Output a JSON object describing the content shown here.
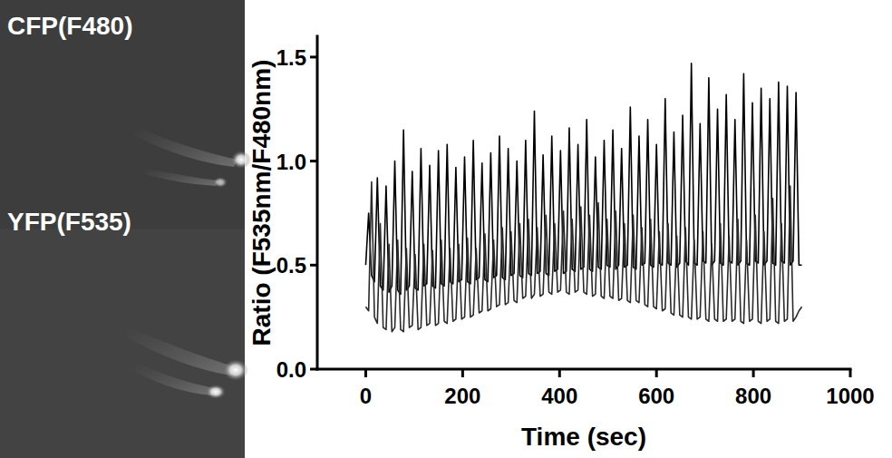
{
  "image_panel": {
    "labels": [
      "CFP(F480)",
      "YFP(F535)"
    ]
  },
  "chart_data": {
    "type": "line",
    "x_label": "Time (sec)",
    "y_label": "Ratio (F535nm/F480nm)",
    "xlim": [
      -100,
      1000
    ],
    "xticks": [
      0,
      200,
      400,
      600,
      800,
      1000
    ],
    "ylim": [
      0,
      1.6
    ],
    "yticks": [
      {
        "value": 0,
        "label": "0.0"
      },
      {
        "value": 0.5,
        "label": "0.5"
      },
      {
        "value": 1,
        "label": "1.0"
      },
      {
        "value": 1.5,
        "label": "1.5"
      }
    ],
    "x": [
      0,
      6,
      12,
      18,
      24,
      30,
      36,
      42,
      48,
      54,
      60,
      66,
      72,
      78,
      84,
      90,
      96,
      102,
      108,
      114,
      120,
      126,
      132,
      138,
      144,
      150,
      156,
      162,
      168,
      174,
      180,
      186,
      192,
      198,
      204,
      210,
      216,
      222,
      228,
      234,
      240,
      246,
      252,
      258,
      264,
      270,
      276,
      282,
      288,
      294,
      300,
      306,
      312,
      318,
      324,
      330,
      336,
      342,
      348,
      354,
      360,
      366,
      372,
      378,
      384,
      390,
      396,
      402,
      408,
      414,
      420,
      426,
      432,
      438,
      444,
      450,
      456,
      462,
      468,
      474,
      480,
      486,
      492,
      498,
      504,
      510,
      516,
      522,
      528,
      534,
      540,
      546,
      552,
      558,
      564,
      570,
      576,
      582,
      588,
      594,
      600,
      606,
      612,
      618,
      624,
      630,
      636,
      642,
      648,
      654,
      660,
      666,
      672,
      678,
      684,
      690,
      696,
      702,
      708,
      714,
      720,
      726,
      732,
      738,
      744,
      750,
      756,
      762,
      768,
      774,
      780,
      786,
      792,
      798,
      804,
      810,
      816,
      822,
      828,
      834,
      840,
      846,
      852,
      858,
      864,
      870,
      876,
      882,
      888,
      894,
      900
    ],
    "series": [
      {
        "color": "#000000",
        "values": [
          0.5,
          0.75,
          0.45,
          0.42,
          0.92,
          0.4,
          0.38,
          0.88,
          0.37,
          0.4,
          1.0,
          0.38,
          0.36,
          1.15,
          0.38,
          0.4,
          0.95,
          0.39,
          0.38,
          1.06,
          0.4,
          0.41,
          0.98,
          0.4,
          0.39,
          1.05,
          0.41,
          0.4,
          1.08,
          0.42,
          0.41,
          0.97,
          0.42,
          0.43,
          1.02,
          0.42,
          0.41,
          1.1,
          0.43,
          0.44,
          0.99,
          0.43,
          0.42,
          1.04,
          0.44,
          0.45,
          1.12,
          0.44,
          0.43,
          1.06,
          0.45,
          0.46,
          1.0,
          0.45,
          0.44,
          1.1,
          0.46,
          0.45,
          1.24,
          0.46,
          0.47,
          1.03,
          0.46,
          0.45,
          1.12,
          0.47,
          0.48,
          1.05,
          0.46,
          0.47,
          1.16,
          0.48,
          0.47,
          1.08,
          0.48,
          0.49,
          1.2,
          0.48,
          0.47,
          1.02,
          0.49,
          0.48,
          1.1,
          0.5,
          0.49,
          1.15,
          0.48,
          0.5,
          1.06,
          0.49,
          0.5,
          1.26,
          0.49,
          0.48,
          1.12,
          0.5,
          0.51,
          1.2,
          0.5,
          0.49,
          1.08,
          0.51,
          0.5,
          1.3,
          0.51,
          0.5,
          1.14,
          0.49,
          0.51,
          1.22,
          0.52,
          0.5,
          1.47,
          0.51,
          0.5,
          1.18,
          0.52,
          0.51,
          1.4,
          0.5,
          0.52,
          1.25,
          0.51,
          0.5,
          1.32,
          0.52,
          0.51,
          1.2,
          0.5,
          0.52,
          1.42,
          0.51,
          0.5,
          1.28,
          0.52,
          0.51,
          1.35,
          0.5,
          0.52,
          1.3,
          0.51,
          0.5,
          1.38,
          0.52,
          0.51,
          1.36,
          0.5,
          0.52,
          1.33,
          0.5,
          0.5
        ]
      },
      {
        "color": "#2a2a2a",
        "values": [
          0.3,
          0.28,
          0.9,
          0.25,
          0.22,
          0.7,
          0.2,
          0.19,
          0.6,
          0.18,
          0.2,
          0.62,
          0.19,
          0.18,
          0.58,
          0.2,
          0.21,
          0.55,
          0.19,
          0.2,
          0.6,
          0.21,
          0.22,
          0.57,
          0.21,
          0.22,
          0.62,
          0.23,
          0.22,
          0.58,
          0.23,
          0.24,
          0.6,
          0.24,
          0.25,
          0.63,
          0.25,
          0.26,
          0.58,
          0.27,
          0.28,
          0.65,
          0.28,
          0.29,
          0.62,
          0.3,
          0.31,
          0.68,
          0.31,
          0.32,
          0.66,
          0.33,
          0.32,
          0.7,
          0.34,
          0.35,
          0.72,
          0.34,
          0.36,
          0.68,
          0.35,
          0.36,
          0.74,
          0.37,
          0.36,
          0.7,
          0.37,
          0.38,
          0.76,
          0.37,
          0.36,
          0.72,
          0.37,
          0.38,
          0.78,
          0.37,
          0.36,
          0.74,
          0.35,
          0.36,
          0.8,
          0.35,
          0.34,
          0.72,
          0.35,
          0.34,
          0.76,
          0.33,
          0.34,
          0.7,
          0.33,
          0.32,
          0.74,
          0.33,
          0.32,
          0.68,
          0.31,
          0.3,
          0.72,
          0.3,
          0.29,
          0.66,
          0.28,
          0.29,
          0.7,
          0.27,
          0.26,
          0.64,
          0.26,
          0.25,
          0.68,
          0.25,
          0.24,
          0.62,
          0.24,
          0.25,
          0.66,
          0.24,
          0.23,
          0.6,
          0.24,
          0.23,
          0.7,
          0.23,
          0.24,
          0.64,
          0.23,
          0.24,
          0.72,
          0.23,
          0.22,
          0.62,
          0.23,
          0.24,
          0.74,
          0.23,
          0.22,
          0.66,
          0.23,
          0.24,
          0.82,
          0.23,
          0.22,
          0.7,
          0.23,
          0.24,
          0.88,
          0.23,
          0.25,
          0.28,
          0.3
        ]
      }
    ]
  }
}
